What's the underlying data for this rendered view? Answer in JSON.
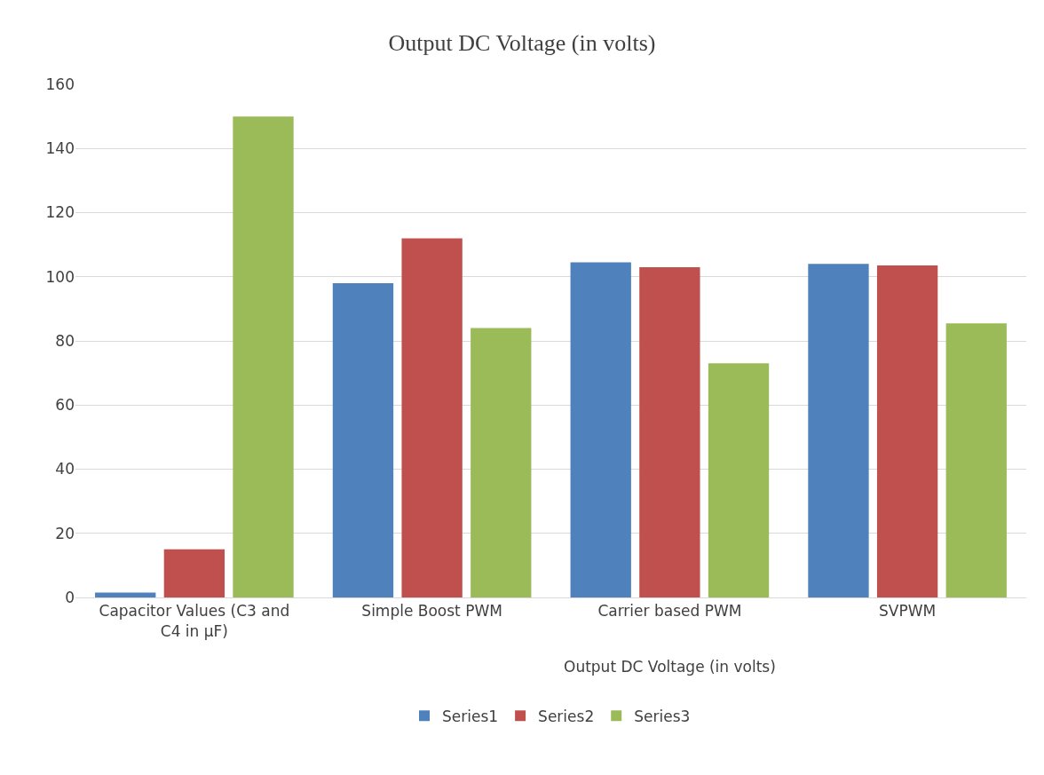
{
  "chart_data": {
    "type": "bar",
    "title": "Output DC Voltage (in volts)",
    "categories": [
      "Capacitor Values (C3 and C4 in µF)",
      "Simple Boost PWM",
      "Carrier based PWM",
      "SVPWM"
    ],
    "series": [
      {
        "name": "Series1",
        "color": "#4f81bd",
        "values": [
          1.5,
          98,
          104.5,
          104
        ]
      },
      {
        "name": "Series2",
        "color": "#c0504d",
        "values": [
          15,
          112,
          103,
          103.5
        ]
      },
      {
        "name": "Series3",
        "color": "#9bbb59",
        "values": [
          150,
          84,
          73,
          85.5
        ]
      }
    ],
    "annotations": [
      "Output DC Voltage (in volts)"
    ],
    "ylim": [
      0,
      160
    ],
    "yticks": [
      0,
      20,
      40,
      60,
      80,
      100,
      120,
      140,
      160
    ],
    "grid": "y",
    "legend": "bottom"
  }
}
